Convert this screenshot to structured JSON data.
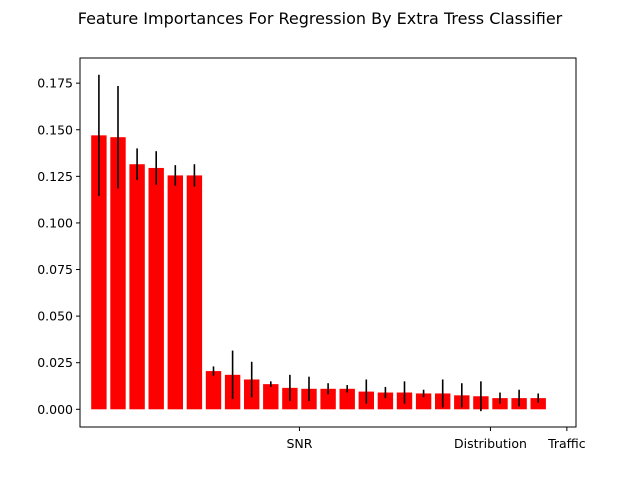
{
  "chart_data": {
    "type": "bar",
    "title": "Feature Importances For Regression By Extra Tress Classifier",
    "xlabel": "",
    "ylabel": "",
    "ylim": [
      -0.0095,
      0.1885
    ],
    "y_ticks": [
      "0.000",
      "0.025",
      "0.050",
      "0.075",
      "0.100",
      "0.125",
      "0.150",
      "0.175"
    ],
    "x_tick_labels": [
      {
        "text": "SNR",
        "index": 10.5
      },
      {
        "text": "Distribution",
        "index": 20.5
      },
      {
        "text": "Traffic",
        "index": 24.5
      }
    ],
    "bar_color": "#ff0000",
    "error_color": "#000000",
    "grid": false,
    "values": [
      0.147,
      0.146,
      0.1315,
      0.1295,
      0.1255,
      0.1255,
      0.0205,
      0.0185,
      0.016,
      0.0135,
      0.0115,
      0.011,
      0.011,
      0.011,
      0.0095,
      0.009,
      0.009,
      0.0085,
      0.0085,
      0.0075,
      0.007,
      0.006,
      0.006,
      0.006
    ],
    "errors": [
      0.0325,
      0.0275,
      0.0085,
      0.009,
      0.0055,
      0.006,
      0.0025,
      0.013,
      0.0095,
      0.0015,
      0.007,
      0.0065,
      0.003,
      0.002,
      0.0065,
      0.003,
      0.006,
      0.002,
      0.0075,
      0.0065,
      0.008,
      0.003,
      0.0045,
      0.0025
    ]
  }
}
